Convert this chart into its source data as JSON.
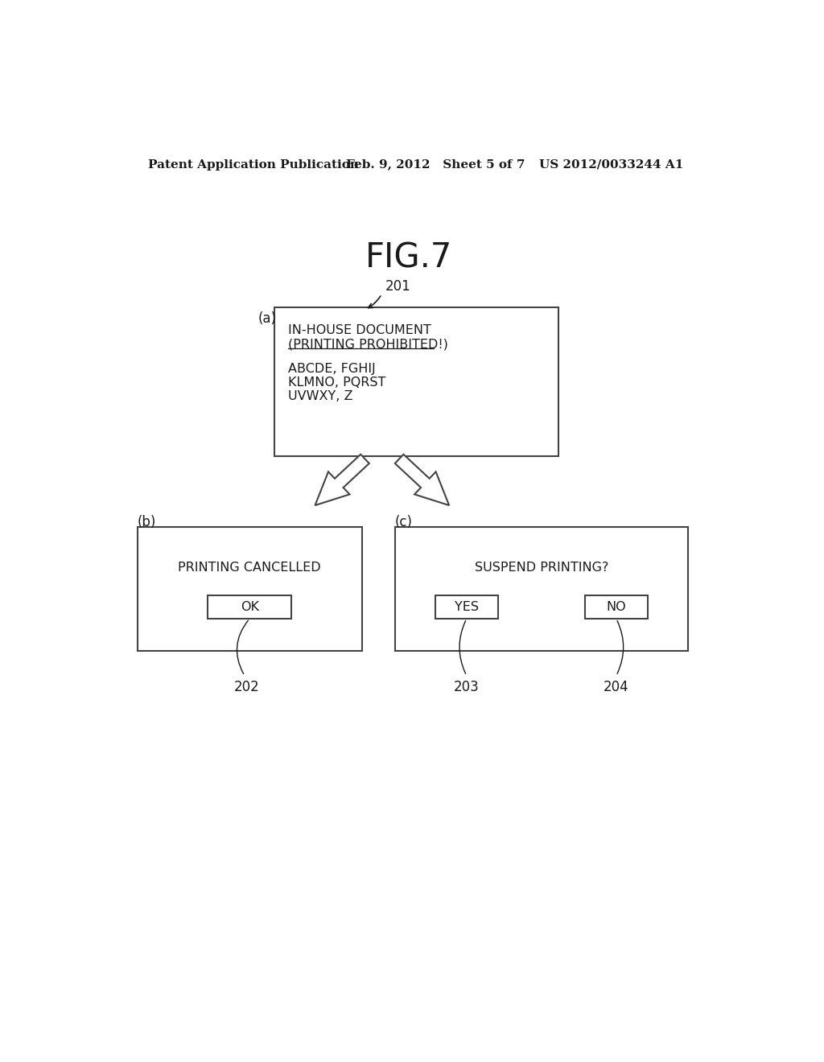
{
  "background_color": "#ffffff",
  "header_left": "Patent Application Publication",
  "header_mid": "Feb. 9, 2012   Sheet 5 of 7",
  "header_right": "US 2012/0033244 A1",
  "fig_title": "FIG.7",
  "box_a_label": "(a)",
  "box_a_line1": "IN-HOUSE DOCUMENT",
  "box_a_line2": "(PRINTING PROHIBITED!)",
  "box_a_line3": "ABCDE, FGHIJ",
  "box_a_line4": "KLMNO, PQRST",
  "box_a_line5": "UVWXY, Z",
  "box_a_ref": "201",
  "box_b_label": "(b)",
  "box_b_text": "PRINTING CANCELLED",
  "box_b_btn": "OK",
  "box_b_ref": "202",
  "box_c_label": "(c)",
  "box_c_text": "SUSPEND PRINTING?",
  "box_c_btn1": "YES",
  "box_c_btn2": "NO",
  "box_c_ref1": "203",
  "box_c_ref2": "204",
  "text_color": "#1a1a1a",
  "box_edge_color": "#444444",
  "arrow_color": "#444444",
  "header_fontsize": 11,
  "fig_title_fontsize": 30,
  "label_fontsize": 12,
  "body_fontsize": 11.5,
  "ref_fontsize": 12
}
